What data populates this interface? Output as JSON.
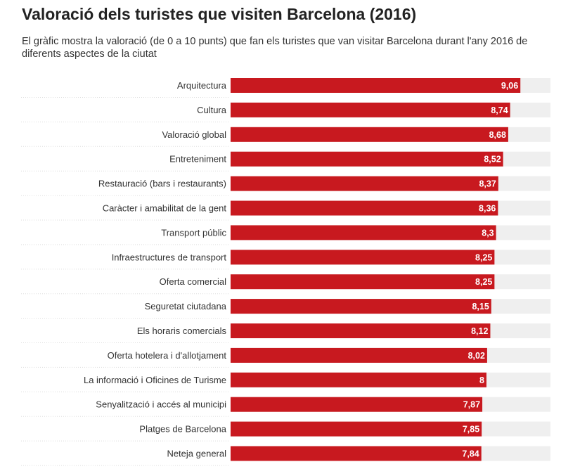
{
  "header": {
    "title": "Valoració dels turistes que visiten Barcelona (2016)",
    "subtitle": "El gràfic mostra la valoració (de 0 a 10 punts) que fan els turistes que van visitar Barcelona durant l'any 2016 de diferents aspectes de la ciutat"
  },
  "colors": {
    "bar": "#c8191f",
    "track": "#efefef",
    "row_divider": "#dddddd"
  },
  "chart_data": {
    "type": "bar",
    "orientation": "horizontal",
    "title": "Valoració dels turistes que visiten Barcelona (2016)",
    "subtitle": "El gràfic mostra la valoració (de 0 a 10 punts) que fan els turistes que van visitar Barcelona durant l'any 2016 de diferents aspectes de la ciutat",
    "xlim": [
      0,
      10
    ],
    "grid": false,
    "categories": [
      "Arquitectura",
      "Cultura",
      "Valoració global",
      "Entreteniment",
      "Restauració (bars i restaurants)",
      "Caràcter i amabilitat de la gent",
      "Transport públic",
      "Infraestructures de transport",
      "Oferta comercial",
      "Seguretat ciutadana",
      "Els horaris comercials",
      "Oferta hotelera i d'allotjament",
      "La informació i Oficines de Turisme",
      "Senyalització i accés al municipi",
      "Platges de Barcelona",
      "Neteja general"
    ],
    "values": [
      9.06,
      8.74,
      8.68,
      8.52,
      8.37,
      8.36,
      8.3,
      8.25,
      8.25,
      8.15,
      8.12,
      8.02,
      8,
      7.87,
      7.85,
      7.84
    ],
    "value_labels": [
      "9,06",
      "8,74",
      "8,68",
      "8,52",
      "8,37",
      "8,36",
      "8,3",
      "8,25",
      "8,25",
      "8,15",
      "8,12",
      "8,02",
      "8",
      "7,87",
      "7,85",
      "7,84"
    ]
  }
}
